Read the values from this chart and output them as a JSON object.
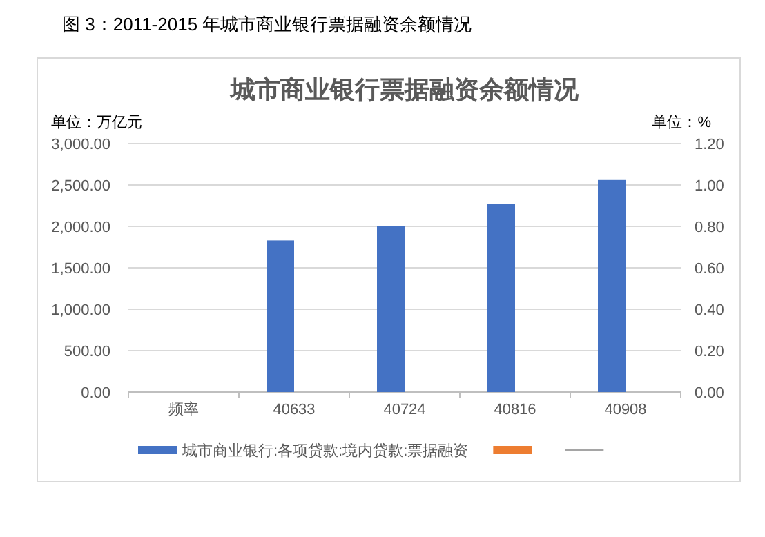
{
  "chart_data": {
    "type": "bar",
    "title": "城市商业银行票据融资余额情况",
    "ylabel": "单位：万亿元",
    "y2label": "单位：%",
    "annotations": [
      "图 3：2011-2015 年城市商业银行票据融资余额情况"
    ],
    "categories": [
      "频率",
      "40633",
      "40724",
      "40816",
      "40908"
    ],
    "series": [
      {
        "name": "城市商业银行:各项贷款:境内贷款:票据融资",
        "color": "#4472c4",
        "values": [
          null,
          1830,
          2000,
          2270,
          2560
        ]
      },
      {
        "color": "#ed7d31",
        "values": [
          null,
          null,
          null,
          null,
          null
        ]
      },
      {
        "type": "line",
        "color": "#a5a5a5",
        "values": [
          null,
          null,
          null,
          null,
          null
        ]
      }
    ],
    "ylim": [
      0,
      3000
    ],
    "yticks": [
      {
        "value": 0,
        "label": "0.00"
      },
      {
        "value": 500,
        "label": "500.00"
      },
      {
        "value": 1000,
        "label": "1,000.00"
      },
      {
        "value": 1500,
        "label": "1,500.00"
      },
      {
        "value": 2000,
        "label": "2,000.00"
      },
      {
        "value": 2500,
        "label": "2,500.00"
      },
      {
        "value": 3000,
        "label": "3,000.00"
      }
    ],
    "y2lim": [
      0,
      1.2
    ],
    "y2ticks": [
      {
        "value": 0,
        "label": "0.00"
      },
      {
        "value": 0.2,
        "label": "0.20"
      },
      {
        "value": 0.4,
        "label": "0.40"
      },
      {
        "value": 0.6,
        "label": "0.60"
      },
      {
        "value": 0.8,
        "label": "0.80"
      },
      {
        "value": 1,
        "label": "1.00"
      },
      {
        "value": 1.2,
        "label": "1.20"
      }
    ],
    "grid": "y",
    "legend": "bottom"
  }
}
